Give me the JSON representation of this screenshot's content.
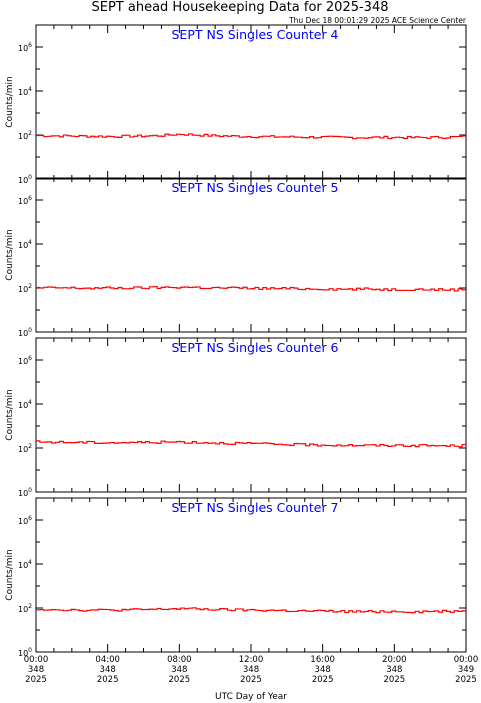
{
  "header": {
    "title": "SEPT ahead Housekeeping Data for 2025-348",
    "timestamp": "Thu Dec 18 00:01:29 2025 ACE Science Center"
  },
  "colors": {
    "data": "#ff0000",
    "panel_title": "#0000ff",
    "axis": "#000000"
  },
  "chart_data": [
    {
      "type": "line",
      "title": "SEPT NS Singles Counter 4",
      "ylabel": "Counts/min",
      "xlabel": "",
      "yscale": "log",
      "ylim": [
        1,
        10000000
      ],
      "yticks": [
        "10^0",
        "10^2",
        "10^4",
        "10^6"
      ],
      "xlim": [
        0,
        24
      ],
      "grid": false,
      "series": [
        {
          "x": [
            0,
            1,
            2,
            3,
            4,
            5,
            6,
            7,
            8,
            9,
            10,
            11,
            12,
            13,
            14,
            15,
            16,
            17,
            18,
            19,
            20,
            21,
            22,
            23,
            24
          ],
          "y": [
            95,
            92,
            90,
            88,
            86,
            88,
            90,
            95,
            110,
            100,
            92,
            88,
            86,
            84,
            82,
            80,
            80,
            78,
            76,
            78,
            78,
            76,
            78,
            80,
            85
          ]
        }
      ]
    },
    {
      "type": "line",
      "title": "SEPT NS Singles Counter 5",
      "ylabel": "Counts/min",
      "xlabel": "",
      "yscale": "log",
      "ylim": [
        1,
        10000000
      ],
      "yticks": [
        "10^0",
        "10^2",
        "10^4",
        "10^6"
      ],
      "xlim": [
        0,
        24
      ],
      "grid": false,
      "series": [
        {
          "x": [
            0,
            1,
            2,
            3,
            4,
            5,
            6,
            7,
            8,
            9,
            10,
            11,
            12,
            13,
            14,
            15,
            16,
            17,
            18,
            19,
            20,
            21,
            22,
            23,
            24
          ],
          "y": [
            100,
            102,
            100,
            98,
            100,
            100,
            102,
            105,
            110,
            105,
            100,
            100,
            98,
            95,
            95,
            92,
            92,
            88,
            90,
            88,
            85,
            88,
            85,
            84,
            85
          ]
        }
      ]
    },
    {
      "type": "line",
      "title": "SEPT NS Singles Counter 6",
      "ylabel": "Counts/min",
      "xlabel": "",
      "yscale": "log",
      "ylim": [
        1,
        10000000
      ],
      "yticks": [
        "10^0",
        "10^2",
        "10^4",
        "10^6"
      ],
      "xlim": [
        0,
        24
      ],
      "grid": false,
      "series": [
        {
          "x": [
            0,
            1,
            2,
            3,
            4,
            5,
            6,
            7,
            8,
            9,
            10,
            11,
            12,
            13,
            14,
            15,
            16,
            17,
            18,
            19,
            20,
            21,
            22,
            23,
            24
          ],
          "y": [
            190,
            185,
            182,
            180,
            175,
            178,
            180,
            185,
            190,
            180,
            170,
            165,
            160,
            150,
            145,
            140,
            138,
            135,
            132,
            130,
            132,
            130,
            128,
            125,
            130
          ]
        }
      ]
    },
    {
      "type": "line",
      "title": "SEPT NS Singles Counter 7",
      "ylabel": "Counts/min",
      "xlabel": "UTC Day of Year",
      "yscale": "log",
      "ylim": [
        1,
        10000000
      ],
      "yticks": [
        "10^0",
        "10^2",
        "10^4",
        "10^6"
      ],
      "xlim": [
        0,
        24
      ],
      "grid": false,
      "xticks": [
        {
          "time": "00:00",
          "day": "348",
          "year": "2025"
        },
        {
          "time": "04:00",
          "day": "348",
          "year": "2025"
        },
        {
          "time": "08:00",
          "day": "348",
          "year": "2025"
        },
        {
          "time": "12:00",
          "day": "348",
          "year": "2025"
        },
        {
          "time": "16:00",
          "day": "348",
          "year": "2025"
        },
        {
          "time": "20:00",
          "day": "348",
          "year": "2025"
        },
        {
          "time": "00:00",
          "day": "349",
          "year": "2025"
        }
      ],
      "series": [
        {
          "x": [
            0,
            1,
            2,
            3,
            4,
            5,
            6,
            7,
            8,
            9,
            10,
            11,
            12,
            13,
            14,
            15,
            16,
            17,
            18,
            19,
            20,
            21,
            22,
            23,
            24
          ],
          "y": [
            90,
            85,
            82,
            80,
            80,
            82,
            85,
            88,
            95,
            90,
            85,
            82,
            80,
            78,
            75,
            72,
            72,
            70,
            68,
            70,
            70,
            68,
            70,
            72,
            75
          ]
        }
      ]
    }
  ]
}
